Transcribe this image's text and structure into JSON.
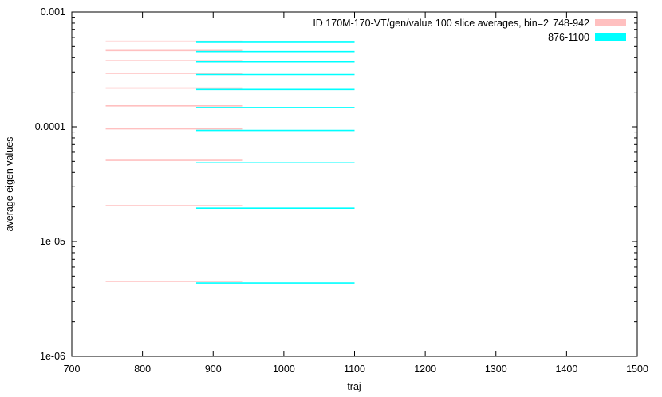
{
  "chart_data": {
    "type": "line",
    "title": "",
    "xlabel": "traj",
    "ylabel": "average eigen values",
    "xlim": [
      700,
      1500
    ],
    "ylim": [
      1e-06,
      0.001
    ],
    "yscale": "log",
    "grid": false,
    "legend_position": "top-right",
    "x_ticks": [
      "700",
      "800",
      "900",
      "1000",
      "1100",
      "1200",
      "1300",
      "1400",
      "1500"
    ],
    "y_ticks": [
      "1e-06",
      "1e-05",
      "0.0001",
      "0.001"
    ],
    "overlap_label": "ID 170M-170-VT/gen/value 100 slice averages, bin=2",
    "series": [
      {
        "name": "748-942",
        "color": "#ffc0c0",
        "x_range": [
          748,
          942
        ],
        "levels": [
          4.5e-06,
          2.05e-05,
          5.1e-05,
          9.6e-05,
          0.000152,
          0.000217,
          0.000292,
          0.000376,
          0.000462,
          0.000556
        ]
      },
      {
        "name": "876-1100",
        "color": "#00ffff",
        "x_range": [
          876,
          1100
        ],
        "levels": [
          4.35e-06,
          1.95e-05,
          4.85e-05,
          9.3e-05,
          0.000147,
          0.000211,
          0.000285,
          0.000367,
          0.000452,
          0.000545
        ]
      }
    ]
  }
}
